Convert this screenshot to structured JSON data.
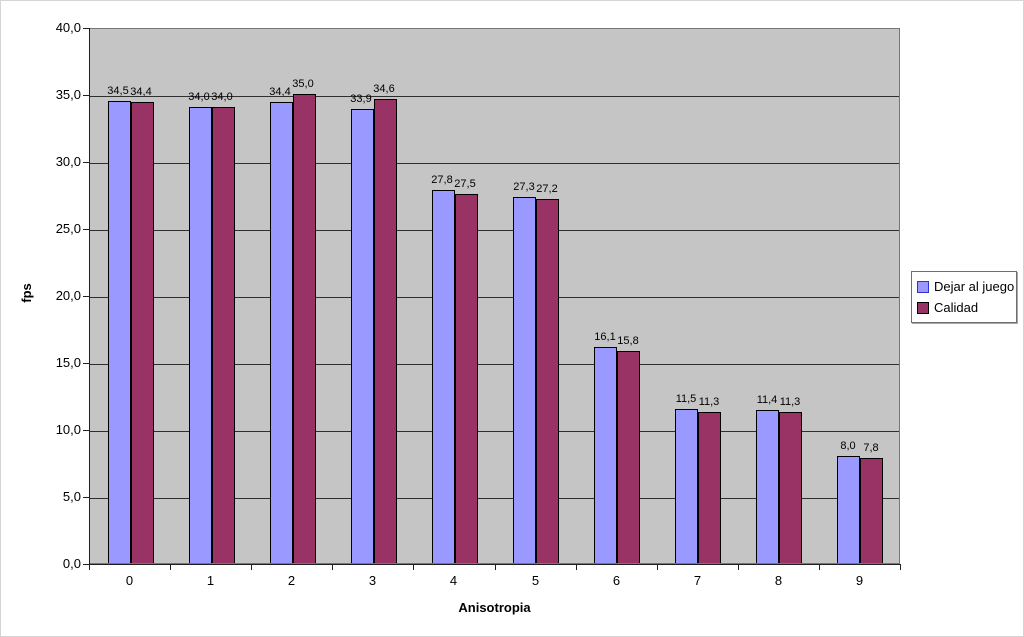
{
  "chart_data": {
    "type": "bar",
    "title": "",
    "categories": [
      "0",
      "1",
      "2",
      "3",
      "4",
      "5",
      "6",
      "7",
      "8",
      "9"
    ],
    "series": [
      {
        "name": "Dejar al juego",
        "color": "#9999FF",
        "swatch_border": "#3333CC",
        "values": [
          34.5,
          34.0,
          34.4,
          33.9,
          27.8,
          27.3,
          16.1,
          11.5,
          11.4,
          8.0
        ],
        "data_labels": [
          "34,5",
          "34,0",
          "34,4",
          "33,9",
          "27,8",
          "27,3",
          "16,1",
          "11,5",
          "11,4",
          "8,0"
        ]
      },
      {
        "name": "Calidad",
        "color": "#993366",
        "swatch_border": "#000000",
        "values": [
          34.4,
          34.0,
          35.0,
          34.6,
          27.5,
          27.2,
          15.8,
          11.3,
          11.3,
          7.8
        ],
        "data_labels": [
          "34,4",
          "34,0",
          "35,0",
          "34,6",
          "27,5",
          "27,2",
          "15,8",
          "11,3",
          "11,3",
          "7,8"
        ]
      }
    ],
    "xlabel": "Anisotropia",
    "ylabel": "fps",
    "ylim": [
      0,
      40
    ],
    "ytick_step": 5,
    "ytick_labels": [
      "40,0",
      "35,0",
      "30,0",
      "25,0",
      "20,0",
      "15,0",
      "10,0",
      "5,0",
      "0,0"
    ],
    "grid": true,
    "legend_position": "right",
    "plot_background": "#C5C5C5",
    "gridline_color": "#2F2F2F",
    "axis_color": "#1F1F1F",
    "bar_border_color": "#000000"
  }
}
